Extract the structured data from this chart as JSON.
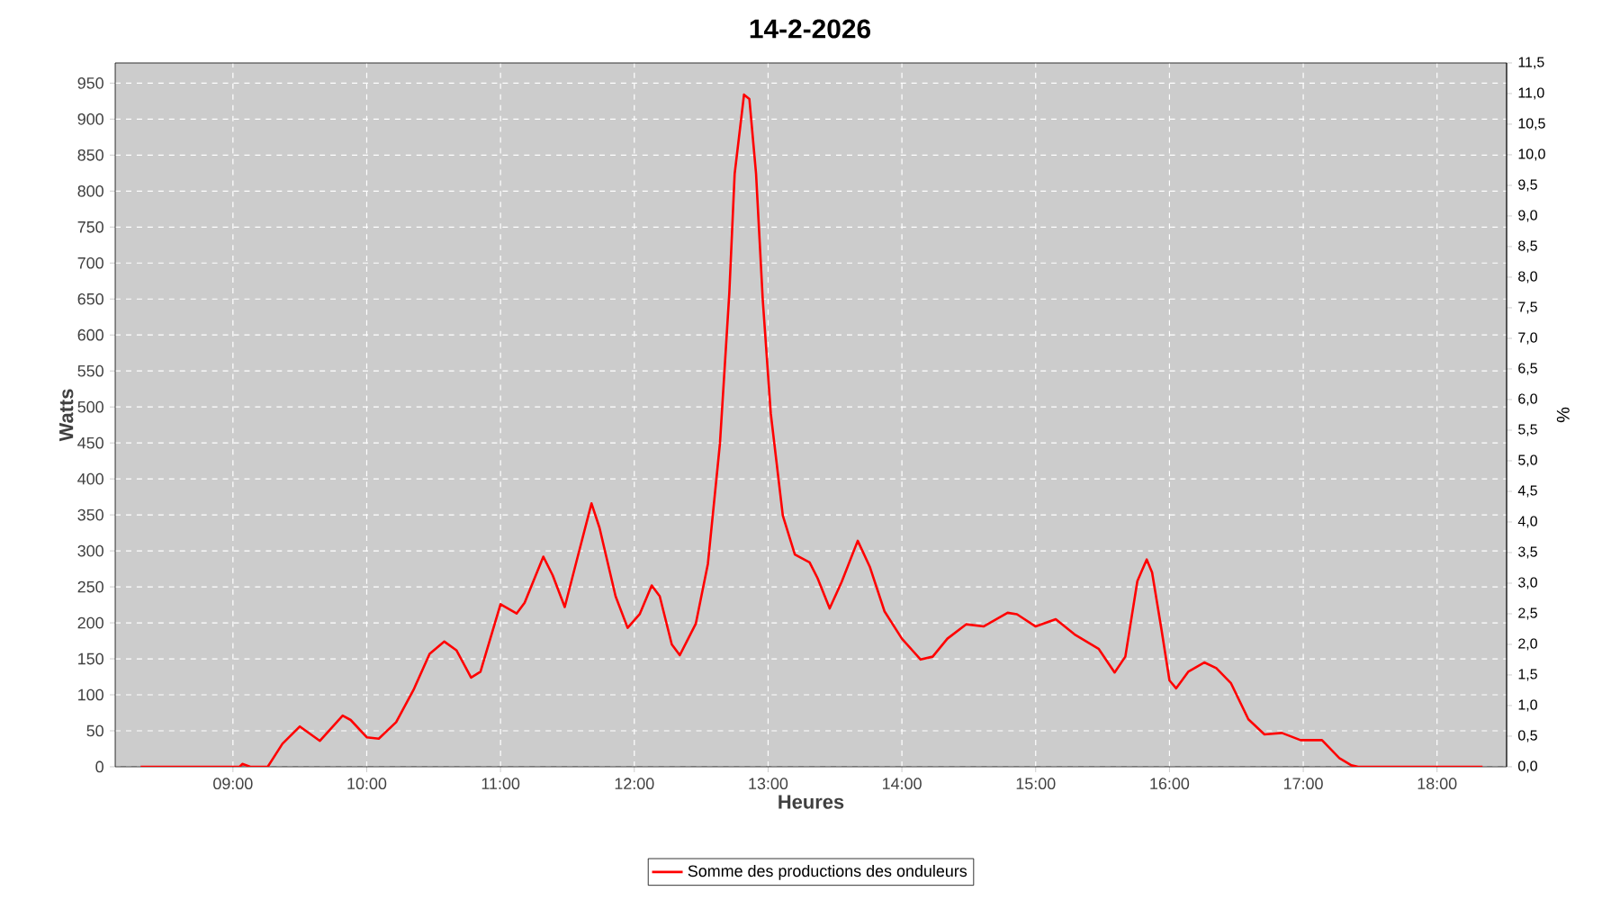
{
  "chart_data": {
    "type": "line",
    "title": "14-2-2026",
    "xlabel": "Heures",
    "ylabel": "Watts",
    "y2label": "%",
    "xlim": [
      8.12,
      18.52
    ],
    "ylim": [
      0,
      978
    ],
    "y2lim": [
      0,
      11.5
    ],
    "xticks": [
      {
        "value": 9,
        "label": "09:00"
      },
      {
        "value": 10,
        "label": "10:00"
      },
      {
        "value": 11,
        "label": "11:00"
      },
      {
        "value": 12,
        "label": "12:00"
      },
      {
        "value": 13,
        "label": "13:00"
      },
      {
        "value": 14,
        "label": "14:00"
      },
      {
        "value": 15,
        "label": "15:00"
      },
      {
        "value": 16,
        "label": "16:00"
      },
      {
        "value": 17,
        "label": "17:00"
      },
      {
        "value": 18,
        "label": "18:00"
      }
    ],
    "yticks": [
      0,
      50,
      100,
      150,
      200,
      250,
      300,
      350,
      400,
      450,
      500,
      550,
      600,
      650,
      700,
      750,
      800,
      850,
      900,
      950
    ],
    "y2ticks": [
      {
        "value": 0,
        "label": "0,0"
      },
      {
        "value": 0.5,
        "label": "0,5"
      },
      {
        "value": 1,
        "label": "1,0"
      },
      {
        "value": 1.5,
        "label": "1,5"
      },
      {
        "value": 2,
        "label": "2,0"
      },
      {
        "value": 2.5,
        "label": "2,5"
      },
      {
        "value": 3,
        "label": "3,0"
      },
      {
        "value": 3.5,
        "label": "3,5"
      },
      {
        "value": 4,
        "label": "4,0"
      },
      {
        "value": 4.5,
        "label": "4,5"
      },
      {
        "value": 5,
        "label": "5,0"
      },
      {
        "value": 5.5,
        "label": "5,5"
      },
      {
        "value": 6,
        "label": "6,0"
      },
      {
        "value": 6.5,
        "label": "6,5"
      },
      {
        "value": 7,
        "label": "7,0"
      },
      {
        "value": 7.5,
        "label": "7,5"
      },
      {
        "value": 8,
        "label": "8,0"
      },
      {
        "value": 8.5,
        "label": "8,5"
      },
      {
        "value": 9,
        "label": "9,0"
      },
      {
        "value": 9.5,
        "label": "9,5"
      },
      {
        "value": 10,
        "label": "10,0"
      },
      {
        "value": 10.5,
        "label": "10,5"
      },
      {
        "value": 11,
        "label": "11,0"
      },
      {
        "value": 11.5,
        "label": "11,5"
      }
    ],
    "grid": true,
    "legend": "bottom",
    "marker": "none",
    "line_style": "solid",
    "series": [
      {
        "name": "Somme des productions des onduleurs",
        "color": "#ff0000",
        "x": [
          8.31,
          9.05,
          9.07,
          9.13,
          9.26,
          9.37,
          9.5,
          9.65,
          9.82,
          9.88,
          10.0,
          10.09,
          10.22,
          10.35,
          10.47,
          10.58,
          10.67,
          10.78,
          10.85,
          11.0,
          11.12,
          11.18,
          11.32,
          11.39,
          11.48,
          11.57,
          11.68,
          11.74,
          11.86,
          11.95,
          12.04,
          12.13,
          12.19,
          12.28,
          12.34,
          12.46,
          12.55,
          12.64,
          12.71,
          12.75,
          12.82,
          12.86,
          12.91,
          12.96,
          13.02,
          13.11,
          13.2,
          13.31,
          13.37,
          13.46,
          13.55,
          13.67,
          13.76,
          13.87,
          14.0,
          14.14,
          14.23,
          14.34,
          14.48,
          14.61,
          14.79,
          14.86,
          15.0,
          15.15,
          15.29,
          15.47,
          15.59,
          15.67,
          15.76,
          15.83,
          15.87,
          15.94,
          16.0,
          16.05,
          16.14,
          16.26,
          16.35,
          16.46,
          16.59,
          16.71,
          16.84,
          16.98,
          17.14,
          17.27,
          17.36,
          17.41,
          18.34
        ],
        "values": [
          0,
          0,
          4,
          0,
          0,
          32,
          56,
          36,
          71,
          65,
          41,
          39,
          62,
          107,
          157,
          174,
          162,
          124,
          132,
          226,
          213,
          228,
          292,
          266,
          222,
          287,
          366,
          332,
          237,
          193,
          212,
          252,
          237,
          170,
          155,
          199,
          282,
          449,
          658,
          824,
          934,
          928,
          824,
          649,
          491,
          349,
          295,
          284,
          262,
          220,
          257,
          314,
          278,
          216,
          178,
          149,
          153,
          178,
          198,
          195,
          214,
          212,
          195,
          205,
          184,
          164,
          131,
          153,
          258,
          288,
          270,
          191,
          120,
          109,
          132,
          145,
          137,
          116,
          66,
          45,
          47,
          37,
          37,
          12,
          2,
          0,
          0
        ]
      }
    ]
  }
}
